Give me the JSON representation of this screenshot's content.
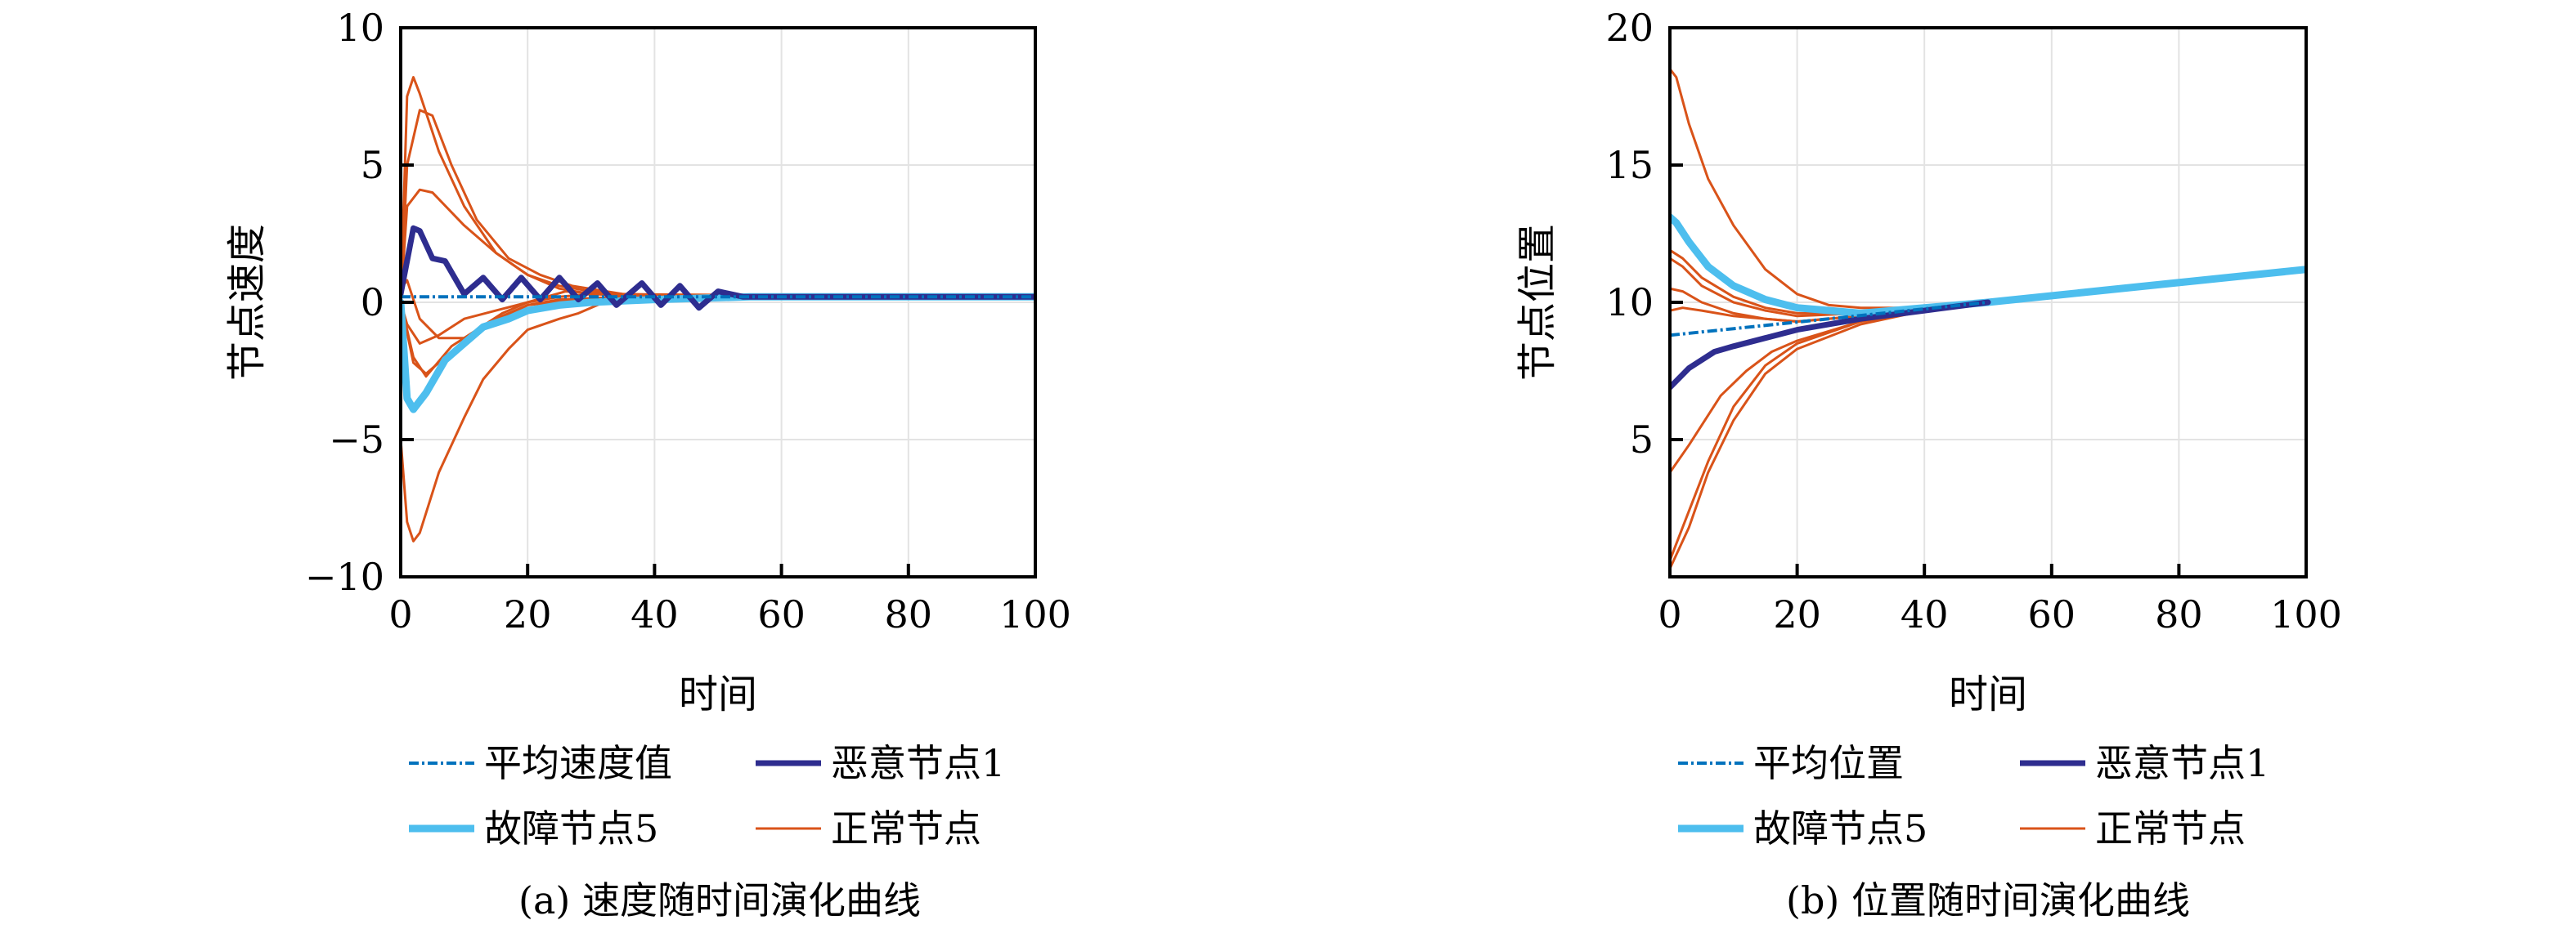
{
  "colors": {
    "average": "#0072BD",
    "malicious": "#2E2D8F",
    "faulty": "#4DBEEE",
    "normal": "#D95319",
    "grid": "#e3e3e3"
  },
  "chart_data": [
    {
      "type": "line",
      "caption": "(a) 速度随时间演化曲线",
      "xlabel": "时间",
      "ylabel": "节点速度",
      "xlim": [
        0,
        100
      ],
      "ylim": [
        -10,
        10
      ],
      "xticks": [
        "0",
        "20",
        "40",
        "60",
        "80",
        "100"
      ],
      "yticks": [
        "−10",
        "−5",
        "0",
        "5",
        "10"
      ],
      "grid": true,
      "legend": [
        "平均速度值",
        "恶意节点1",
        "故障节点5",
        "正常节点"
      ],
      "legend_placement": "bottom",
      "series": [
        {
          "name": "平均速度值",
          "role": "average",
          "points": [
            [
              0,
              0.2
            ],
            [
              100,
              0.2
            ]
          ]
        },
        {
          "name": "恶意节点1",
          "role": "malicious",
          "points": [
            [
              0,
              0.3
            ],
            [
              2,
              2.7
            ],
            [
              3,
              2.6
            ],
            [
              5,
              1.6
            ],
            [
              7,
              1.5
            ],
            [
              10,
              0.3
            ],
            [
              13,
              0.9
            ],
            [
              16,
              0.1
            ],
            [
              19,
              0.9
            ],
            [
              22,
              0.1
            ],
            [
              25,
              0.9
            ],
            [
              28,
              0.1
            ],
            [
              31,
              0.7
            ],
            [
              34,
              -0.1
            ],
            [
              38,
              0.7
            ],
            [
              41,
              -0.1
            ],
            [
              44,
              0.6
            ],
            [
              47,
              -0.2
            ],
            [
              50,
              0.4
            ],
            [
              54,
              0.2
            ],
            [
              100,
              0.2
            ]
          ]
        },
        {
          "name": "故障节点5",
          "role": "faulty",
          "points": [
            [
              0,
              0
            ],
            [
              1,
              -3.5
            ],
            [
              2,
              -3.9
            ],
            [
              4,
              -3.3
            ],
            [
              7,
              -2.1
            ],
            [
              10,
              -1.5
            ],
            [
              13,
              -0.9
            ],
            [
              17,
              -0.6
            ],
            [
              20,
              -0.3
            ],
            [
              25,
              -0.1
            ],
            [
              30,
              0
            ],
            [
              40,
              0.1
            ],
            [
              55,
              0.2
            ],
            [
              100,
              0.2
            ]
          ]
        },
        {
          "name": "正常节点",
          "role": "normal",
          "lines": [
            [
              [
                0,
                0
              ],
              [
                1,
                7.5
              ],
              [
                2,
                8.2
              ],
              [
                3,
                7.6
              ],
              [
                6,
                5.5
              ],
              [
                10,
                3.5
              ],
              [
                15,
                1.8
              ],
              [
                20,
                1.0
              ],
              [
                25,
                0.6
              ],
              [
                30,
                0.4
              ],
              [
                40,
                0.2
              ],
              [
                55,
                0.2
              ],
              [
                100,
                0.2
              ]
            ],
            [
              [
                0,
                0
              ],
              [
                1,
                5
              ],
              [
                3,
                7
              ],
              [
                5,
                6.8
              ],
              [
                8,
                5.0
              ],
              [
                12,
                3.0
              ],
              [
                17,
                1.6
              ],
              [
                22,
                1.0
              ],
              [
                27,
                0.6
              ],
              [
                35,
                0.3
              ],
              [
                55,
                0.2
              ],
              [
                100,
                0.2
              ]
            ],
            [
              [
                0,
                0
              ],
              [
                1,
                3.5
              ],
              [
                3,
                4.1
              ],
              [
                5,
                4.0
              ],
              [
                10,
                2.8
              ],
              [
                15,
                1.8
              ],
              [
                20,
                1.0
              ],
              [
                25,
                0.5
              ],
              [
                30,
                0.3
              ],
              [
                40,
                0.2
              ],
              [
                100,
                0.2
              ]
            ],
            [
              [
                0,
                0.5
              ],
              [
                1,
                0.8
              ],
              [
                3,
                -0.6
              ],
              [
                6,
                -1.3
              ],
              [
                10,
                -1.3
              ],
              [
                15,
                -0.7
              ],
              [
                20,
                -0.1
              ],
              [
                25,
                0.1
              ],
              [
                35,
                0.2
              ],
              [
                100,
                0.2
              ]
            ],
            [
              [
                0,
                0
              ],
              [
                2,
                -2
              ],
              [
                4,
                -2.7
              ],
              [
                8,
                -1.6
              ],
              [
                12,
                -1.0
              ],
              [
                16,
                -0.4
              ],
              [
                20,
                0
              ],
              [
                25,
                0.2
              ],
              [
                30,
                0.3
              ],
              [
                100,
                0.2
              ]
            ],
            [
              [
                0,
                0
              ],
              [
                2,
                -2.2
              ],
              [
                4,
                -2.6
              ],
              [
                8,
                -1.8
              ],
              [
                12,
                -1.0
              ],
              [
                16,
                -0.5
              ],
              [
                20,
                -0.1
              ],
              [
                28,
                0.1
              ],
              [
                100,
                0.2
              ]
            ],
            [
              [
                0,
                0
              ],
              [
                1,
                -0.8
              ],
              [
                3,
                -1.5
              ],
              [
                6,
                -1.2
              ],
              [
                10,
                -0.6
              ],
              [
                15,
                -0.3
              ],
              [
                20,
                0
              ],
              [
                26,
                0.4
              ],
              [
                32,
                0.3
              ],
              [
                40,
                0.2
              ],
              [
                100,
                0.2
              ]
            ],
            [
              [
                0,
                -5
              ],
              [
                1,
                -8
              ],
              [
                2,
                -8.7
              ],
              [
                3,
                -8.4
              ],
              [
                6,
                -6.2
              ],
              [
                10,
                -4.2
              ],
              [
                13,
                -2.8
              ],
              [
                17,
                -1.7
              ],
              [
                20,
                -1.0
              ],
              [
                25,
                -0.6
              ],
              [
                28,
                -0.4
              ],
              [
                32,
                0
              ],
              [
                40,
                0.2
              ],
              [
                100,
                0.2
              ]
            ]
          ]
        }
      ]
    },
    {
      "type": "line",
      "caption": "(b) 位置随时间演化曲线",
      "xlabel": "时间",
      "ylabel": "节点位置",
      "xlim": [
        0,
        100
      ],
      "ylim": [
        0,
        20
      ],
      "xticks": [
        "0",
        "20",
        "40",
        "60",
        "80",
        "100"
      ],
      "yticks": [
        "5",
        "10",
        "15",
        "20"
      ],
      "grid": true,
      "legend": [
        "平均位置",
        "恶意节点1",
        "故障节点5",
        "正常节点"
      ],
      "legend_placement": "bottom",
      "series": [
        {
          "name": "平均位置",
          "role": "average",
          "points": [
            [
              0,
              8.8
            ],
            [
              50,
              10.0
            ]
          ]
        },
        {
          "name": "恶意节点1",
          "role": "malicious",
          "points": [
            [
              0,
              6.9
            ],
            [
              3,
              7.6
            ],
            [
              7,
              8.2
            ],
            [
              10,
              8.4
            ],
            [
              15,
              8.7
            ],
            [
              20,
              9.0
            ],
            [
              30,
              9.4
            ],
            [
              40,
              9.7
            ],
            [
              50,
              10.0
            ]
          ]
        },
        {
          "name": "故障节点5",
          "role": "faulty",
          "points": [
            [
              0,
              13.1
            ],
            [
              1,
              12.9
            ],
            [
              3,
              12.2
            ],
            [
              6,
              11.3
            ],
            [
              10,
              10.6
            ],
            [
              15,
              10.1
            ],
            [
              20,
              9.8
            ],
            [
              30,
              9.6
            ],
            [
              40,
              9.8
            ],
            [
              50,
              10.0
            ],
            [
              100,
              11.2
            ]
          ]
        },
        {
          "name": "正常节点",
          "role": "normal",
          "lines": [
            [
              [
                0,
                18.5
              ],
              [
                1,
                18.2
              ],
              [
                3,
                16.5
              ],
              [
                6,
                14.5
              ],
              [
                10,
                12.8
              ],
              [
                15,
                11.2
              ],
              [
                20,
                10.3
              ],
              [
                25,
                9.9
              ],
              [
                30,
                9.8
              ],
              [
                40,
                9.8
              ],
              [
                100,
                11.2
              ]
            ],
            [
              [
                0,
                11.9
              ],
              [
                2,
                11.6
              ],
              [
                5,
                10.9
              ],
              [
                10,
                10.2
              ],
              [
                15,
                9.8
              ],
              [
                20,
                9.6
              ],
              [
                30,
                9.6
              ],
              [
                40,
                9.8
              ],
              [
                100,
                11.2
              ]
            ],
            [
              [
                0,
                11.6
              ],
              [
                2,
                11.3
              ],
              [
                5,
                10.6
              ],
              [
                10,
                10.0
              ],
              [
                15,
                9.7
              ],
              [
                20,
                9.5
              ],
              [
                30,
                9.6
              ],
              [
                40,
                9.8
              ],
              [
                100,
                11.2
              ]
            ],
            [
              [
                0,
                10.5
              ],
              [
                2,
                10.4
              ],
              [
                5,
                10.0
              ],
              [
                10,
                9.6
              ],
              [
                15,
                9.4
              ],
              [
                20,
                9.3
              ],
              [
                30,
                9.5
              ],
              [
                40,
                9.8
              ],
              [
                100,
                11.2
              ]
            ],
            [
              [
                0,
                9.7
              ],
              [
                2,
                9.8
              ],
              [
                5,
                9.7
              ],
              [
                10,
                9.5
              ],
              [
                15,
                9.4
              ],
              [
                20,
                9.3
              ],
              [
                30,
                9.5
              ],
              [
                40,
                9.8
              ],
              [
                100,
                11.2
              ]
            ],
            [
              [
                0,
                3.8
              ],
              [
                3,
                4.8
              ],
              [
                8,
                6.6
              ],
              [
                12,
                7.5
              ],
              [
                16,
                8.2
              ],
              [
                20,
                8.6
              ],
              [
                30,
                9.3
              ],
              [
                40,
                9.7
              ],
              [
                100,
                11.2
              ]
            ],
            [
              [
                0,
                0.6
              ],
              [
                3,
                2.4
              ],
              [
                6,
                4.2
              ],
              [
                10,
                6.2
              ],
              [
                15,
                7.7
              ],
              [
                20,
                8.5
              ],
              [
                30,
                9.3
              ],
              [
                40,
                9.7
              ],
              [
                100,
                11.2
              ]
            ],
            [
              [
                0,
                0.3
              ],
              [
                3,
                1.8
              ],
              [
                6,
                3.8
              ],
              [
                10,
                5.7
              ],
              [
                15,
                7.4
              ],
              [
                20,
                8.3
              ],
              [
                30,
                9.2
              ],
              [
                40,
                9.7
              ],
              [
                100,
                11.2
              ]
            ]
          ]
        }
      ]
    }
  ]
}
